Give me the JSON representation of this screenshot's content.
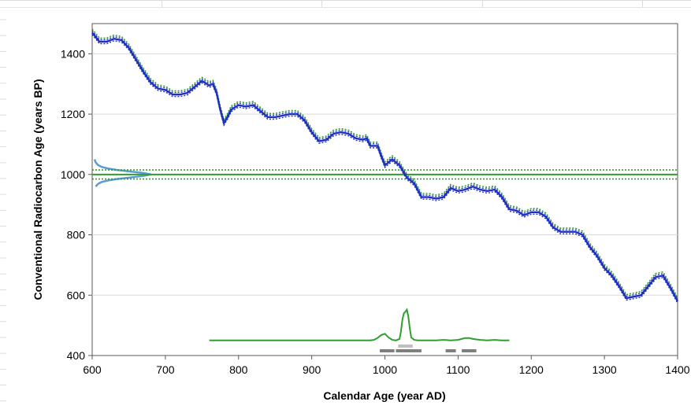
{
  "chart_data": {
    "type": "line",
    "title": "",
    "xlabel": "Calendar Age (year AD)",
    "ylabel": "Conventional Radiocarbon Age (years BP)",
    "xlim": [
      600,
      1400
    ],
    "ylim": [
      400,
      1500
    ],
    "x_ticks": [
      600,
      700,
      800,
      900,
      1000,
      1100,
      1200,
      1300,
      1400
    ],
    "y_ticks": [
      400,
      600,
      800,
      1000,
      1200,
      1400
    ],
    "grid": "horizontal",
    "legend": "none",
    "colors": {
      "calibration_curve": "#1f2fbf",
      "curve_bounds_outer": "#2e9e2e",
      "measurement": "#2e9e2e",
      "measurement_distribution": "#5b9bd5",
      "probability": "#2e9e2e",
      "range_95": "#7f7f7f",
      "range_68": "#bfbfbf"
    },
    "calibration_curve": {
      "x": [
        600,
        610,
        620,
        630,
        640,
        650,
        660,
        670,
        680,
        690,
        700,
        710,
        720,
        730,
        740,
        750,
        760,
        765,
        770,
        775,
        780,
        785,
        790,
        800,
        810,
        820,
        830,
        840,
        850,
        860,
        870,
        880,
        890,
        900,
        910,
        920,
        930,
        940,
        950,
        960,
        970,
        975,
        980,
        990,
        995,
        1000,
        1010,
        1020,
        1030,
        1040,
        1050,
        1060,
        1070,
        1080,
        1090,
        1100,
        1110,
        1120,
        1130,
        1140,
        1150,
        1160,
        1170,
        1180,
        1190,
        1200,
        1210,
        1220,
        1230,
        1240,
        1250,
        1260,
        1270,
        1280,
        1290,
        1300,
        1310,
        1320,
        1330,
        1340,
        1350,
        1360,
        1370,
        1380,
        1390,
        1400
      ],
      "y": [
        1470,
        1440,
        1440,
        1450,
        1445,
        1420,
        1380,
        1340,
        1305,
        1285,
        1280,
        1265,
        1265,
        1270,
        1290,
        1310,
        1295,
        1300,
        1270,
        1215,
        1170,
        1190,
        1215,
        1230,
        1225,
        1230,
        1210,
        1190,
        1190,
        1195,
        1200,
        1200,
        1180,
        1140,
        1110,
        1115,
        1135,
        1140,
        1135,
        1120,
        1115,
        1120,
        1095,
        1095,
        1060,
        1030,
        1050,
        1030,
        990,
        970,
        925,
        925,
        920,
        925,
        955,
        945,
        950,
        960,
        950,
        945,
        950,
        925,
        885,
        880,
        865,
        875,
        875,
        860,
        825,
        810,
        810,
        810,
        800,
        760,
        730,
        690,
        665,
        630,
        590,
        595,
        600,
        630,
        660,
        665,
        625,
        580
      ],
      "uncertainty": 12
    },
    "measurement": {
      "value": 1000,
      "bound_upper": 1015,
      "bound_lower": 985
    },
    "measurement_distribution": {
      "y": [
        960,
        965,
        970,
        975,
        980,
        985,
        990,
        995,
        1000,
        1005,
        1010,
        1015,
        1020,
        1025,
        1030,
        1035,
        1040,
        1045,
        1050
      ],
      "density": [
        0.06,
        0.08,
        0.11,
        0.16,
        0.26,
        0.42,
        0.64,
        0.86,
        1.0,
        0.86,
        0.64,
        0.42,
        0.26,
        0.16,
        0.11,
        0.08,
        0.06,
        0.05,
        0.04
      ]
    },
    "probability": {
      "baseline": 450,
      "x": [
        760,
        900,
        980,
        985,
        990,
        995,
        1000,
        1005,
        1010,
        1015,
        1020,
        1022,
        1024,
        1026,
        1028,
        1030,
        1032,
        1034,
        1036,
        1040,
        1045,
        1050,
        1070,
        1080,
        1090,
        1100,
        1105,
        1110,
        1115,
        1120,
        1130,
        1140,
        1150,
        1160,
        1170
      ],
      "y": [
        450,
        450,
        450,
        452,
        458,
        468,
        472,
        460,
        452,
        450,
        455,
        480,
        520,
        540,
        545,
        552,
        530,
        490,
        460,
        452,
        450,
        450,
        450,
        452,
        450,
        452,
        455,
        458,
        458,
        455,
        452,
        450,
        452,
        450,
        450
      ]
    },
    "ranges_68": [
      [
        1018,
        1038
      ]
    ],
    "ranges_95": [
      [
        993,
        1013
      ],
      [
        1015,
        1050
      ],
      [
        1083,
        1097
      ],
      [
        1105,
        1125
      ]
    ]
  }
}
